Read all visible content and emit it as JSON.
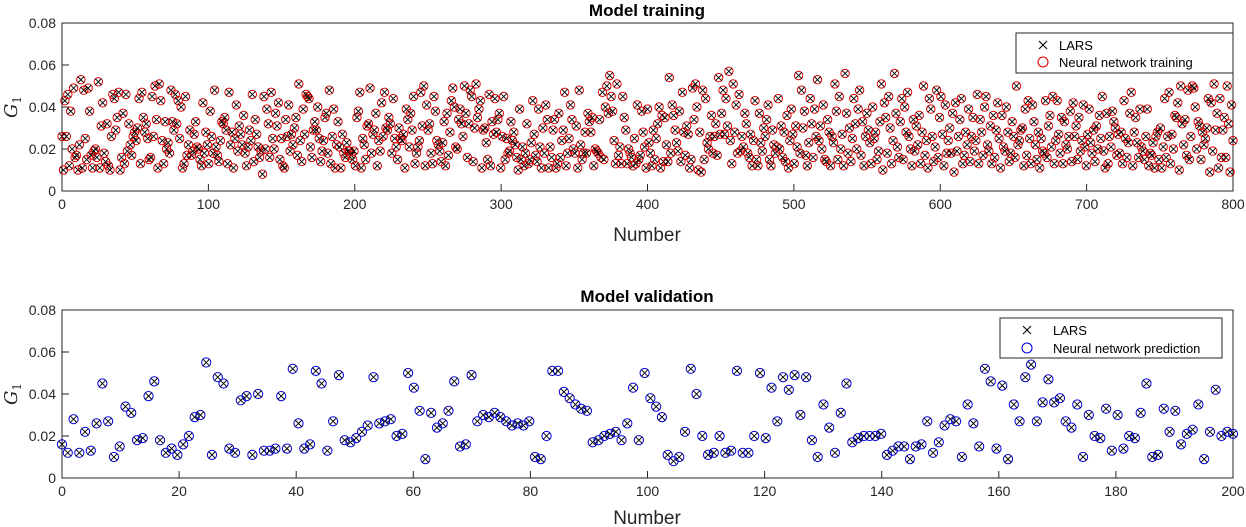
{
  "chart_data": [
    {
      "type": "scatter",
      "title": "Model training",
      "xlabel": "Number",
      "ylabel": "G",
      "ylabel_sub": "1",
      "xlim": [
        0,
        800
      ],
      "ylim": [
        0,
        0.08
      ],
      "xticks": [
        "0",
        "100",
        "200",
        "300",
        "400",
        "500",
        "600",
        "700",
        "800"
      ],
      "yticks": [
        "0",
        "0.02",
        "0.04",
        "0.06",
        "0.08"
      ],
      "legend_position": "top-right",
      "grid": false,
      "colors": {
        "lars": "#000000",
        "nn": "#e00000"
      },
      "series": [
        {
          "name": "LARS",
          "marker": "x"
        },
        {
          "name": "Neural network training",
          "marker": "o"
        }
      ],
      "values": [
        0.026,
        0.01,
        0.043,
        0.026,
        0.046,
        0.012,
        0.038,
        0.02,
        0.049,
        0.016,
        0.017,
        0.01,
        0.022,
        0.053,
        0.011,
        0.048,
        0.025,
        0.015,
        0.049,
        0.038,
        0.017,
        0.011,
        0.019,
        0.02,
        0.016,
        0.052,
        0.011,
        0.031,
        0.042,
        0.018,
        0.014,
        0.032,
        0.012,
        0.01,
        0.026,
        0.046,
        0.044,
        0.029,
        0.035,
        0.047,
        0.01,
        0.016,
        0.037,
        0.013,
        0.046,
        0.019,
        0.032,
        0.022,
        0.017,
        0.026,
        0.028,
        0.024,
        0.03,
        0.044,
        0.013,
        0.047,
        0.035,
        0.028,
        0.032,
        0.025,
        0.015,
        0.016,
        0.045,
        0.026,
        0.05,
        0.034,
        0.011,
        0.051,
        0.043,
        0.024,
        0.013,
        0.033,
        0.02,
        0.023,
        0.018,
        0.048,
        0.033,
        0.029,
        0.046,
        0.032,
        0.043,
        0.025,
        0.04,
        0.011,
        0.013,
        0.045,
        0.017,
        0.022,
        0.029,
        0.017,
        0.019,
        0.027,
        0.033,
        0.021,
        0.02,
        0.015,
        0.012,
        0.042,
        0.018,
        0.028,
        0.022,
        0.013,
        0.038,
        0.026,
        0.018,
        0.048,
        0.021,
        0.017,
        0.014,
        0.024,
        0.033,
        0.032,
        0.035,
        0.029,
        0.013,
        0.047,
        0.022,
        0.028,
        0.011,
        0.025,
        0.041,
        0.019,
        0.031,
        0.027,
        0.022,
        0.036,
        0.018,
        0.012,
        0.021,
        0.029,
        0.024,
        0.046,
        0.014,
        0.034,
        0.027,
        0.021,
        0.016,
        0.019,
        0.008,
        0.045,
        0.02,
        0.039,
        0.032,
        0.016,
        0.047,
        0.025,
        0.02,
        0.037,
        0.031,
        0.042,
        0.015,
        0.025,
        0.012,
        0.011,
        0.034,
        0.026,
        0.041,
        0.019,
        0.027,
        0.022,
        0.03,
        0.035,
        0.017,
        0.051,
        0.024,
        0.014,
        0.039,
        0.027,
        0.046,
        0.045,
        0.044,
        0.021,
        0.016,
        0.029,
        0.033,
        0.029,
        0.04,
        0.025,
        0.014,
        0.019,
        0.024,
        0.035,
        0.037,
        0.018,
        0.048,
        0.013,
        0.026,
        0.039,
        0.011,
        0.022,
        0.033,
        0.021,
        0.011,
        0.027,
        0.018,
        0.016,
        0.023,
        0.019,
        0.019,
        0.017,
        0.015,
        0.019,
        0.012,
        0.035,
        0.038,
        0.047,
        0.011,
        0.025,
        0.022,
        0.015,
        0.031,
        0.032,
        0.049,
        0.018,
        0.027,
        0.029,
        0.037,
        0.012,
        0.024,
        0.019,
        0.042,
        0.026,
        0.047,
        0.03,
        0.029,
        0.035,
        0.032,
        0.018,
        0.044,
        0.025,
        0.021,
        0.015,
        0.03,
        0.025,
        0.024,
        0.027,
        0.011,
        0.039,
        0.034,
        0.021,
        0.037,
        0.029,
        0.045,
        0.013,
        0.018,
        0.021,
        0.024,
        0.047,
        0.031,
        0.05,
        0.012,
        0.041,
        0.029,
        0.032,
        0.018,
        0.013,
        0.045,
        0.038,
        0.024,
        0.022,
        0.019,
        0.014,
        0.023,
        0.033,
        0.012,
        0.037,
        0.017,
        0.028,
        0.043,
        0.049,
        0.04,
        0.021,
        0.02,
        0.034,
        0.039,
        0.032,
        0.026,
        0.05,
        0.037,
        0.016,
        0.032,
        0.048,
        0.045,
        0.014,
        0.03,
        0.051,
        0.035,
        0.039,
        0.043,
        0.011,
        0.029,
        0.03,
        0.023,
        0.015,
        0.046,
        0.012,
        0.033,
        0.027,
        0.044,
        0.028,
        0.034,
        0.037,
        0.011,
        0.026,
        0.045,
        0.015,
        0.025,
        0.018,
        0.019,
        0.033,
        0.024,
        0.028,
        0.022,
        0.016,
        0.01,
        0.039,
        0.015,
        0.021,
        0.012,
        0.018,
        0.032,
        0.013,
        0.015,
        0.023,
        0.043,
        0.027,
        0.017,
        0.014,
        0.039,
        0.021,
        0.011,
        0.03,
        0.018,
        0.041,
        0.034,
        0.011,
        0.021,
        0.016,
        0.029,
        0.034,
        0.011,
        0.013,
        0.037,
        0.016,
        0.024,
        0.029,
        0.047,
        0.012,
        0.018,
        0.025,
        0.041,
        0.034,
        0.02,
        0.018,
        0.031,
        0.011,
        0.048,
        0.022,
        0.015,
        0.018,
        0.028,
        0.018,
        0.037,
        0.033,
        0.028,
        0.035,
        0.012,
        0.02,
        0.019,
        0.018,
        0.034,
        0.016,
        0.047,
        0.015,
        0.04,
        0.05,
        0.037,
        0.055,
        0.045,
        0.038,
        0.024,
        0.013,
        0.051,
        0.017,
        0.021,
        0.013,
        0.045,
        0.035,
        0.029,
        0.013,
        0.02,
        0.018,
        0.016,
        0.012,
        0.025,
        0.013,
        0.041,
        0.015,
        0.017,
        0.038,
        0.028,
        0.021,
        0.011,
        0.039,
        0.023,
        0.018,
        0.012,
        0.029,
        0.015,
        0.025,
        0.032,
        0.04,
        0.011,
        0.036,
        0.014,
        0.035,
        0.022,
        0.014,
        0.054,
        0.018,
        0.041,
        0.036,
        0.029,
        0.023,
        0.019,
        0.038,
        0.014,
        0.047,
        0.028,
        0.017,
        0.031,
        0.027,
        0.011,
        0.015,
        0.049,
        0.034,
        0.051,
        0.04,
        0.01,
        0.028,
        0.009,
        0.048,
        0.015,
        0.044,
        0.023,
        0.02,
        0.026,
        0.036,
        0.018,
        0.026,
        0.032,
        0.017,
        0.054,
        0.027,
        0.037,
        0.048,
        0.027,
        0.044,
        0.031,
        0.057,
        0.024,
        0.013,
        0.051,
        0.028,
        0.041,
        0.018,
        0.046,
        0.019,
        0.026,
        0.021,
        0.037,
        0.032,
        0.018,
        0.016,
        0.027,
        0.012,
        0.024,
        0.043,
        0.015,
        0.012,
        0.037,
        0.023,
        0.019,
        0.03,
        0.026,
        0.034,
        0.041,
        0.015,
        0.012,
        0.029,
        0.022,
        0.018,
        0.021,
        0.044,
        0.02,
        0.031,
        0.016,
        0.028,
        0.014,
        0.036,
        0.011,
        0.024,
        0.039,
        0.027,
        0.013,
        0.031,
        0.021,
        0.055,
        0.018,
        0.048,
        0.03,
        0.038,
        0.017,
        0.012,
        0.023,
        0.044,
        0.032,
        0.016,
        0.039,
        0.026,
        0.053,
        0.024,
        0.031,
        0.02,
        0.041,
        0.015,
        0.014,
        0.034,
        0.028,
        0.012,
        0.026,
        0.023,
        0.051,
        0.038,
        0.015,
        0.045,
        0.02,
        0.027,
        0.012,
        0.056,
        0.037,
        0.018,
        0.03,
        0.014,
        0.025,
        0.044,
        0.032,
        0.02,
        0.039,
        0.048,
        0.017,
        0.033,
        0.012,
        0.026,
        0.037,
        0.029,
        0.023,
        0.013,
        0.04,
        0.025,
        0.028,
        0.015,
        0.019,
        0.033,
        0.051,
        0.01,
        0.042,
        0.035,
        0.018,
        0.045,
        0.03,
        0.013,
        0.024,
        0.056,
        0.037,
        0.021,
        0.016,
        0.033,
        0.044,
        0.015,
        0.04,
        0.028,
        0.047,
        0.026,
        0.02,
        0.012,
        0.034,
        0.019,
        0.031,
        0.022,
        0.036,
        0.013,
        0.028,
        0.05,
        0.017,
        0.024,
        0.011,
        0.044,
        0.039,
        0.026,
        0.014,
        0.021,
        0.048,
        0.016,
        0.035,
        0.045,
        0.027,
        0.012,
        0.041,
        0.018,
        0.024,
        0.03,
        0.018,
        0.037,
        0.009,
        0.042,
        0.019,
        0.026,
        0.034,
        0.044,
        0.013,
        0.017,
        0.028,
        0.022,
        0.039,
        0.014,
        0.026,
        0.035,
        0.019,
        0.024,
        0.046,
        0.013,
        0.034,
        0.028,
        0.017,
        0.04,
        0.045,
        0.022,
        0.019,
        0.031,
        0.013,
        0.036,
        0.016,
        0.029,
        0.042,
        0.025,
        0.011,
        0.036,
        0.021,
        0.019,
        0.04,
        0.028,
        0.014,
        0.018,
        0.033,
        0.026,
        0.016,
        0.05,
        0.022,
        0.024,
        0.029,
        0.03,
        0.012,
        0.039,
        0.017,
        0.043,
        0.025,
        0.013,
        0.041,
        0.033,
        0.022,
        0.015,
        0.028,
        0.011,
        0.025,
        0.019,
        0.018,
        0.043,
        0.016,
        0.031,
        0.036,
        0.021,
        0.045,
        0.013,
        0.024,
        0.043,
        0.027,
        0.018,
        0.035,
        0.013,
        0.033,
        0.022,
        0.02,
        0.026,
        0.038,
        0.014,
        0.042,
        0.026,
        0.031,
        0.015,
        0.035,
        0.019,
        0.024,
        0.041,
        0.021,
        0.012,
        0.027,
        0.039,
        0.023,
        0.018,
        0.029,
        0.014,
        0.031,
        0.02,
        0.036,
        0.025,
        0.045,
        0.019,
        0.011,
        0.037,
        0.013,
        0.026,
        0.021,
        0.038,
        0.033,
        0.03,
        0.017,
        0.027,
        0.018,
        0.028,
        0.013,
        0.043,
        0.025,
        0.016,
        0.023,
        0.037,
        0.047,
        0.012,
        0.028,
        0.035,
        0.023,
        0.016,
        0.039,
        0.021,
        0.019,
        0.015,
        0.026,
        0.039,
        0.012,
        0.018,
        0.017,
        0.023,
        0.011,
        0.026,
        0.028,
        0.015,
        0.03,
        0.011,
        0.021,
        0.044,
        0.016,
        0.026,
        0.047,
        0.013,
        0.027,
        0.02,
        0.036,
        0.035,
        0.042,
        0.01,
        0.05,
        0.032,
        0.022,
        0.034,
        0.017,
        0.048,
        0.015,
        0.026,
        0.05,
        0.049,
        0.04,
        0.02,
        0.033,
        0.031,
        0.015,
        0.028,
        0.022,
        0.025,
        0.03,
        0.044,
        0.009,
        0.042,
        0.019,
        0.051,
        0.029,
        0.037,
        0.011,
        0.044,
        0.016,
        0.029,
        0.035,
        0.016,
        0.05,
        0.032,
        0.009,
        0.041,
        0.024
      ]
    },
    {
      "type": "scatter",
      "title": "Model validation",
      "xlabel": "Number",
      "ylabel": "G",
      "ylabel_sub": "1",
      "xlim": [
        0,
        200
      ],
      "ylim": [
        0,
        0.08
      ],
      "xticks": [
        "0",
        "20",
        "40",
        "60",
        "80",
        "100",
        "120",
        "140",
        "160",
        "180",
        "200"
      ],
      "yticks": [
        "0",
        "0.02",
        "0.04",
        "0.06",
        "0.08"
      ],
      "legend_position": "top-right",
      "grid": false,
      "colors": {
        "lars": "#000000",
        "nn": "#0000dd"
      },
      "series": [
        {
          "name": "LARS",
          "marker": "x"
        },
        {
          "name": "Neural network prediction",
          "marker": "o"
        }
      ],
      "values": [
        0.016,
        0.012,
        0.028,
        0.012,
        0.022,
        0.013,
        0.026,
        0.045,
        0.027,
        0.01,
        0.015,
        0.034,
        0.031,
        0.018,
        0.019,
        0.039,
        0.046,
        0.018,
        0.012,
        0.014,
        0.011,
        0.016,
        0.02,
        0.029,
        0.03,
        0.055,
        0.011,
        0.048,
        0.045,
        0.014,
        0.012,
        0.037,
        0.039,
        0.011,
        0.04,
        0.013,
        0.013,
        0.014,
        0.039,
        0.014,
        0.052,
        0.026,
        0.014,
        0.016,
        0.051,
        0.045,
        0.013,
        0.027,
        0.049,
        0.018,
        0.017,
        0.019,
        0.022,
        0.025,
        0.048,
        0.026,
        0.027,
        0.028,
        0.02,
        0.021,
        0.05,
        0.043,
        0.032,
        0.009,
        0.031,
        0.024,
        0.026,
        0.032,
        0.046,
        0.015,
        0.016,
        0.049,
        0.027,
        0.03,
        0.029,
        0.031,
        0.029,
        0.027,
        0.025,
        0.026,
        0.025,
        0.027,
        0.01,
        0.009,
        0.02,
        0.051,
        0.051,
        0.041,
        0.038,
        0.035,
        0.033,
        0.032,
        0.017,
        0.018,
        0.02,
        0.021,
        0.022,
        0.018,
        0.026,
        0.043,
        0.018,
        0.05,
        0.038,
        0.034,
        0.029,
        0.011,
        0.008,
        0.01,
        0.022,
        0.052,
        0.04,
        0.02,
        0.011,
        0.012,
        0.02,
        0.012,
        0.013,
        0.051,
        0.012,
        0.012,
        0.02,
        0.05,
        0.019,
        0.043,
        0.027,
        0.048,
        0.042,
        0.049,
        0.03,
        0.048,
        0.018,
        0.01,
        0.035,
        0.024,
        0.012,
        0.031,
        0.045,
        0.017,
        0.019,
        0.02,
        0.02,
        0.02,
        0.021,
        0.011,
        0.013,
        0.015,
        0.015,
        0.009,
        0.015,
        0.016,
        0.027,
        0.012,
        0.017,
        0.025,
        0.028,
        0.027,
        0.01,
        0.035,
        0.026,
        0.015,
        0.052,
        0.046,
        0.014,
        0.044,
        0.009,
        0.035,
        0.027,
        0.048,
        0.054,
        0.027,
        0.036,
        0.047,
        0.036,
        0.038,
        0.027,
        0.024,
        0.035,
        0.01,
        0.03,
        0.02,
        0.019,
        0.033,
        0.013,
        0.03,
        0.014,
        0.02,
        0.019,
        0.031,
        0.045,
        0.01,
        0.011,
        0.033,
        0.022,
        0.032,
        0.016,
        0.021,
        0.023,
        0.035,
        0.009,
        0.022,
        0.042,
        0.02,
        0.022,
        0.021
      ]
    }
  ]
}
